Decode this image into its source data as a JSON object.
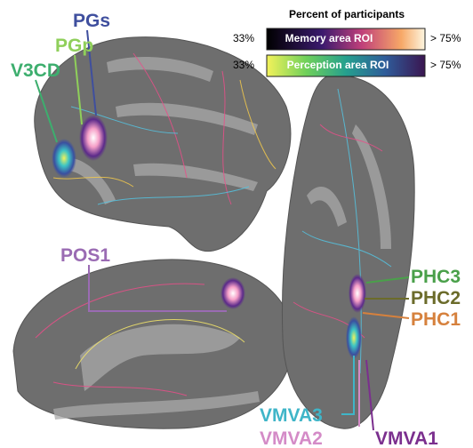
{
  "legend": {
    "title": "Percent of participants",
    "rows": [
      {
        "min": "33%",
        "label": "Memory area ROI",
        "max": "> 75%"
      },
      {
        "min": "33%",
        "label": "Perception area ROI",
        "max": "> 75%"
      }
    ]
  },
  "labels": [
    "PGs",
    "PGp",
    "V3CD",
    "POS1",
    "PHC3",
    "PHC2",
    "PHC1",
    "VMVA3",
    "VMVA2",
    "VMVA1"
  ]
}
